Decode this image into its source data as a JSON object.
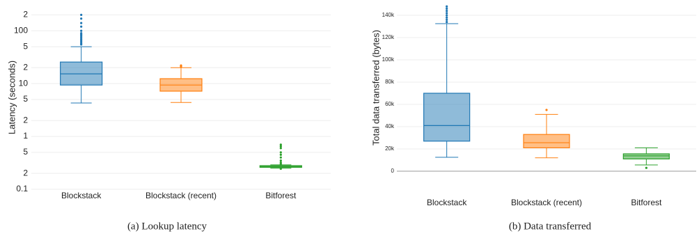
{
  "chart_data": [
    {
      "type": "box",
      "caption": "(a) Lookup latency",
      "ylabel": "Latency (seconds)",
      "yscale": "log",
      "grid": true,
      "categories": [
        "Blockstack",
        "Blockstack (recent)",
        "Bitforest"
      ],
      "ylim": [
        0.1,
        300
      ],
      "yticks": [
        0.1,
        {
          "value": 0.2,
          "label": "2"
        },
        {
          "value": 0.5,
          "label": "5"
        },
        1,
        2,
        5,
        10,
        {
          "value": 20,
          "label": "2"
        },
        {
          "value": 50,
          "label": "5"
        },
        100,
        {
          "value": 200,
          "label": "2"
        }
      ],
      "boxes": [
        {
          "color": "#1f77b4",
          "min": 4.3,
          "q1": 9.4,
          "median": 15.3,
          "q3": 25.6,
          "max": 50,
          "outliers": [
            55,
            58,
            62,
            66,
            70,
            75,
            80,
            85,
            90,
            100,
            120,
            140,
            170,
            200
          ]
        },
        {
          "color": "#ff7f0e",
          "min": 4.4,
          "q1": 7.2,
          "median": 9.4,
          "q3": 12.4,
          "max": 20,
          "outliers": [
            21,
            22
          ]
        },
        {
          "color": "#2ca02c",
          "min": 0.25,
          "q1": 0.26,
          "median": 0.27,
          "q3": 0.28,
          "max": 0.29,
          "outliers": [
            0.245,
            0.3,
            0.32,
            0.35,
            0.4,
            0.45,
            0.5,
            0.6,
            0.65,
            0.7
          ]
        }
      ]
    },
    {
      "type": "box",
      "caption": "(b) Data transferred",
      "ylabel": "Total data transferred (bytes)",
      "yscale": "linear",
      "grid": true,
      "categories": [
        "Blockstack",
        "Blockstack (recent)",
        "Bitforest"
      ],
      "ylim": [
        0,
        150000
      ],
      "yticks": [
        0,
        {
          "value": 20000,
          "label": "20k"
        },
        {
          "value": 40000,
          "label": "40k"
        },
        {
          "value": 60000,
          "label": "60k"
        },
        {
          "value": 80000,
          "label": "80k"
        },
        {
          "value": 100000,
          "label": "100k"
        },
        {
          "value": 120000,
          "label": "120k"
        },
        {
          "value": 140000,
          "label": "140k"
        }
      ],
      "boxes": [
        {
          "color": "#1f77b4",
          "min": 12500,
          "q1": 27000,
          "median": 41000,
          "q3": 70000,
          "max": 132500,
          "outliers": [
            134000,
            136000,
            138000,
            140000,
            142000,
            144000,
            146000,
            148000
          ]
        },
        {
          "color": "#ff7f0e",
          "min": 12000,
          "q1": 21000,
          "median": 25600,
          "q3": 33000,
          "max": 51000,
          "outliers": [
            55000
          ]
        },
        {
          "color": "#2ca02c",
          "min": 5600,
          "q1": 11000,
          "median": 13800,
          "q3": 15600,
          "max": 21000,
          "outliers": [
            3000
          ]
        }
      ]
    }
  ]
}
